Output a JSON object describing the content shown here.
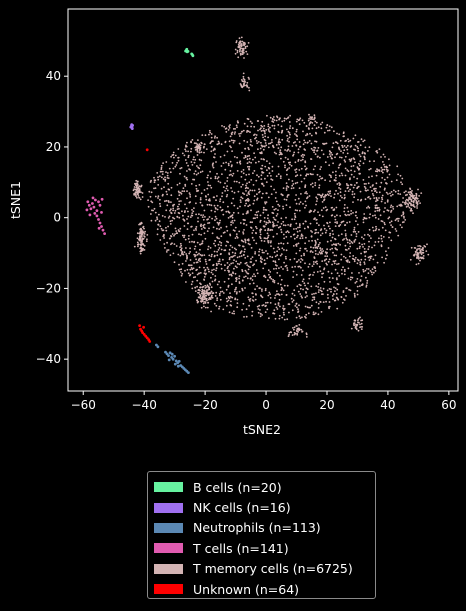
{
  "chart_data": {
    "type": "scatter",
    "title": "",
    "xlabel": "tSNE2",
    "ylabel": "tSNE1",
    "xlim": [
      -65,
      63
    ],
    "ylim": [
      -49,
      59
    ],
    "xticks": [
      -60,
      -40,
      -20,
      0,
      20,
      40,
      60
    ],
    "yticks": [
      -40,
      -20,
      0,
      20,
      40
    ],
    "grid": false,
    "legend_position": "below",
    "background": "#000000",
    "series": [
      {
        "name": "B cells (n=20)",
        "color": "#66f2a0",
        "points": [
          [
            -26.4,
            47.1
          ],
          [
            -25.9,
            46.9
          ],
          [
            -26.2,
            47.3
          ],
          [
            -25.6,
            47.0
          ],
          [
            -24.2,
            46.1
          ],
          [
            -24.0,
            45.8
          ],
          [
            -24.4,
            46.3
          ],
          [
            -26.0,
            47.6
          ]
        ]
      },
      {
        "name": "NK cells (n=16)",
        "color": "#a070f0",
        "points": [
          [
            -44.2,
            25.9
          ],
          [
            -44.0,
            25.5
          ],
          [
            -43.8,
            26.1
          ],
          [
            -44.4,
            25.6
          ],
          [
            -43.9,
            25.2
          ],
          [
            -44.1,
            26.3
          ]
        ]
      },
      {
        "name": "Neutrophils (n=113)",
        "color": "#5b88b4",
        "points": [
          [
            -36.0,
            -36.0
          ],
          [
            -35.5,
            -36.5
          ],
          [
            -33.0,
            -38.0
          ],
          [
            -32.5,
            -38.5
          ],
          [
            -32.0,
            -39.0
          ],
          [
            -31.5,
            -38.2
          ],
          [
            -31.0,
            -39.5
          ],
          [
            -30.5,
            -40.0
          ],
          [
            -30.0,
            -39.2
          ],
          [
            -29.5,
            -40.5
          ],
          [
            -29.0,
            -41.0
          ],
          [
            -28.5,
            -40.6
          ],
          [
            -28.0,
            -41.8
          ],
          [
            -27.5,
            -42.2
          ],
          [
            -27.0,
            -42.6
          ],
          [
            -26.5,
            -43.0
          ],
          [
            -26.0,
            -43.4
          ],
          [
            -25.5,
            -43.8
          ],
          [
            -31.8,
            -40.2
          ],
          [
            -30.8,
            -38.6
          ],
          [
            -29.8,
            -41.4
          ],
          [
            -28.8,
            -42.0
          ]
        ]
      },
      {
        "name": "T cells (n=141)",
        "color": "#e05bb0",
        "points": [
          [
            -58.5,
            4.5
          ],
          [
            -58.0,
            3.5
          ],
          [
            -57.5,
            2.5
          ],
          [
            -57.0,
            4.0
          ],
          [
            -56.5,
            3.0
          ],
          [
            -56.0,
            5.0
          ],
          [
            -55.5,
            2.0
          ],
          [
            -55.0,
            4.5
          ],
          [
            -54.5,
            3.5
          ],
          [
            -54.0,
            1.5
          ],
          [
            -55.5,
            0.5
          ],
          [
            -55.0,
            -0.5
          ],
          [
            -54.5,
            -1.5
          ],
          [
            -54.0,
            -2.5
          ],
          [
            -53.5,
            -3.5
          ],
          [
            -53.0,
            -4.5
          ],
          [
            -57.8,
            0.8
          ],
          [
            -58.8,
            2.2
          ],
          [
            -56.8,
            5.6
          ],
          [
            -53.8,
            5.2
          ],
          [
            -56.2,
            1.2
          ],
          [
            -54.8,
            -3.0
          ]
        ]
      },
      {
        "name": "T memory cells (n=6725)",
        "color": "#d4b4b4",
        "points": []
      },
      {
        "name": "Unknown (n=64)",
        "color": "#ff0000",
        "points": [
          [
            -41.5,
            -30.5
          ],
          [
            -41.2,
            -31.5
          ],
          [
            -40.8,
            -32.0
          ],
          [
            -40.5,
            -32.5
          ],
          [
            -40.0,
            -33.0
          ],
          [
            -39.5,
            -33.5
          ],
          [
            -39.0,
            -34.0
          ],
          [
            -38.5,
            -34.5
          ],
          [
            -38.2,
            -35.0
          ],
          [
            -40.2,
            -31.0
          ],
          [
            -39.0,
            19.2
          ]
        ]
      }
    ],
    "t_memory_clusters": [
      {
        "cx": 4,
        "cy": 0,
        "rx": 42,
        "ry": 29,
        "share": 0.82
      },
      {
        "cx": -8,
        "cy": 48,
        "rx": 4,
        "ry": 5,
        "share": 0.02
      },
      {
        "cx": -7,
        "cy": 38,
        "rx": 3,
        "ry": 4,
        "share": 0.01
      },
      {
        "cx": -42,
        "cy": 8,
        "rx": 2.5,
        "ry": 5,
        "share": 0.02
      },
      {
        "cx": -41,
        "cy": -6,
        "rx": 2.5,
        "ry": 8,
        "share": 0.03
      },
      {
        "cx": 15,
        "cy": 28,
        "rx": 3,
        "ry": 2,
        "share": 0.005
      },
      {
        "cx": -22,
        "cy": 20,
        "rx": 3,
        "ry": 3,
        "share": 0.01
      },
      {
        "cx": 48,
        "cy": 5,
        "rx": 5,
        "ry": 6,
        "share": 0.03
      },
      {
        "cx": 50,
        "cy": -10,
        "rx": 5,
        "ry": 5,
        "share": 0.02
      },
      {
        "cx": -20,
        "cy": -22,
        "rx": 5,
        "ry": 6,
        "share": 0.03
      },
      {
        "cx": 10,
        "cy": -32,
        "rx": 5,
        "ry": 3,
        "share": 0.01
      },
      {
        "cx": 30,
        "cy": -30,
        "rx": 4,
        "ry": 3,
        "share": 0.01
      }
    ]
  }
}
